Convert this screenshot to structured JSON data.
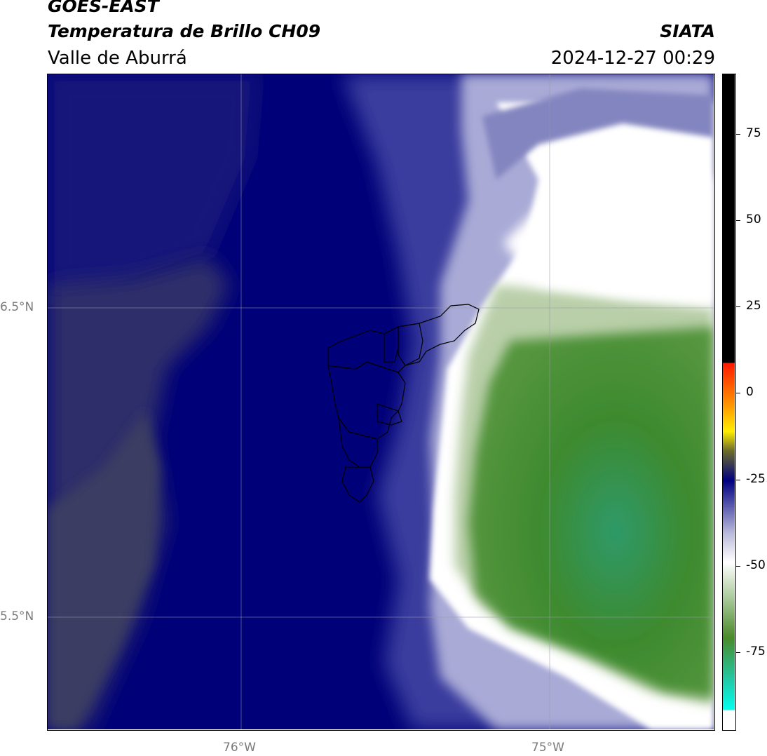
{
  "title": {
    "line1": "GOES-EAST",
    "line2": "Temperatura de Brillo CH09",
    "line3": "Valle de Aburrá",
    "org": "SIATA",
    "datetime": "2024-12-27 00:29"
  },
  "map": {
    "lat_labels": [
      "6.5°N",
      "5.5°N"
    ],
    "lon_labels": [
      "76°W",
      "75°W"
    ]
  },
  "colorbar": {
    "ticks": [
      "75",
      "50",
      "25",
      "0",
      "-25",
      "-50",
      "-75"
    ],
    "colors": {
      "warm_top": "#000000",
      "red": "#ff1a00",
      "orange": "#ff8c00",
      "yellow": "#ffee00",
      "olive": "#6b6b2a",
      "navy": "#000080",
      "lavender": "#b9b9dc",
      "white": "#ffffff",
      "green": "#4a8a2a",
      "teal": "#1fcfb0",
      "cyan": "#00ffee"
    }
  }
}
